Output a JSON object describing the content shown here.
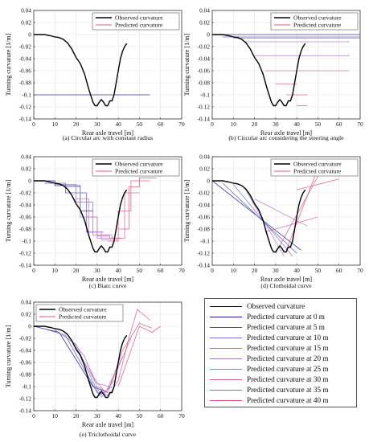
{
  "colors": {
    "observed": "#000000",
    "predicted": "#e05a78",
    "distance_ramp": [
      "#1a1a8c",
      "#4b4bc4",
      "#7a6fd0",
      "#9c7ad0",
      "#b376c4",
      "#c86aa6",
      "#d65e8c",
      "#e0567a",
      "#e84a6a"
    ]
  },
  "legend_box": {
    "entries": [
      {
        "label": "Observed curvature",
        "color": "#000000",
        "width": 1.6
      },
      {
        "label": "Predicted curvature at 0 m",
        "color": "#1a1a8c",
        "width": 1
      },
      {
        "label": "Predicted curvature at 5 m",
        "color": "#4b4bc4",
        "width": 1
      },
      {
        "label": "Predicted curvature at 10 m",
        "color": "#7a6fd0",
        "width": 1
      },
      {
        "label": "Predicted curvature at 15 m",
        "color": "#9c7ad0",
        "width": 1
      },
      {
        "label": "Predicted curvature at 20 m",
        "color": "#b376c4",
        "width": 1
      },
      {
        "label": "Predicted curvature at 25 m",
        "color": "#c86aa6",
        "width": 1
      },
      {
        "label": "Predicted curvature at 30 m",
        "color": "#d65e8c",
        "width": 1
      },
      {
        "label": "Predicted curvature at 35 m",
        "color": "#e0567a",
        "width": 1
      },
      {
        "label": "Predicted curvature at 40 m",
        "color": "#e84a6a",
        "width": 1
      }
    ]
  },
  "chart_data": [
    {
      "type": "line",
      "caption": "(a) Circular arc with constant radius",
      "xlabel": "Rear axle travel [m]",
      "ylabel": "Turning curvature [1/m]",
      "xlim": [
        0,
        70
      ],
      "ylim": [
        -0.14,
        0.04
      ],
      "xticks": [
        "0",
        "10",
        "20",
        "30",
        "40",
        "50",
        "60",
        "70"
      ],
      "yticks": [
        "0.04",
        "0.02",
        "0",
        "-0.02",
        "-0.04",
        "-0.06",
        "-0.08",
        "-0.1",
        "-0.12",
        "-0.14"
      ],
      "grid": true,
      "legend": {
        "position": "top-right",
        "entries": [
          "Observed curvature",
          "Predicted curvature"
        ]
      },
      "observed": {
        "x": [
          0,
          5,
          8,
          10,
          12,
          14,
          16,
          18,
          20,
          22,
          24,
          26,
          28,
          29,
          30,
          31,
          32,
          33,
          34,
          35,
          36,
          37,
          38,
          39,
          40,
          41,
          42,
          43,
          44
        ],
        "y": [
          0,
          0,
          -0.002,
          -0.004,
          -0.005,
          -0.008,
          -0.014,
          -0.024,
          -0.038,
          -0.048,
          -0.065,
          -0.09,
          -0.112,
          -0.118,
          -0.118,
          -0.112,
          -0.108,
          -0.112,
          -0.118,
          -0.118,
          -0.11,
          -0.11,
          -0.1,
          -0.08,
          -0.06,
          -0.04,
          -0.028,
          -0.02,
          -0.015
        ]
      },
      "predictions": [
        {
          "x": [
            0,
            55
          ],
          "y": [
            -0.1,
            -0.1
          ],
          "tone": 0
        }
      ]
    },
    {
      "type": "line",
      "caption": "(b) Circular arc considering the steering angle",
      "xlabel": "Rear axle travel [m]",
      "ylabel": "Turning curvature [1/m]",
      "xlim": [
        0,
        70
      ],
      "ylim": [
        -0.14,
        0.04
      ],
      "xticks": [
        "0",
        "10",
        "20",
        "30",
        "40",
        "50",
        "60",
        "70"
      ],
      "yticks": [
        "0.04",
        "0.02",
        "0",
        "-0.02",
        "-0.04",
        "-0.06",
        "-0.08",
        "-0.1",
        "-0.12",
        "-0.14"
      ],
      "grid": true,
      "legend": {
        "position": "top-right",
        "entries": [
          "Observed curvature",
          "Predicted curvature"
        ]
      },
      "observed": {
        "x": [
          0,
          5,
          8,
          10,
          12,
          14,
          16,
          18,
          20,
          22,
          24,
          26,
          28,
          29,
          30,
          31,
          32,
          33,
          34,
          35,
          36,
          37,
          38,
          39,
          40,
          41,
          42,
          43,
          44
        ],
        "y": [
          0,
          0,
          -0.002,
          -0.004,
          -0.005,
          -0.008,
          -0.014,
          -0.024,
          -0.038,
          -0.048,
          -0.065,
          -0.09,
          -0.112,
          -0.118,
          -0.118,
          -0.112,
          -0.108,
          -0.112,
          -0.118,
          -0.118,
          -0.11,
          -0.11,
          -0.1,
          -0.08,
          -0.06,
          -0.04,
          -0.028,
          -0.02,
          -0.015
        ]
      },
      "predictions": [
        {
          "x": [
            0,
            70
          ],
          "y": [
            0,
            0
          ],
          "tone": 0
        },
        {
          "x": [
            5,
            70
          ],
          "y": [
            -0.004,
            -0.004
          ],
          "tone": 1
        },
        {
          "x": [
            10,
            70
          ],
          "y": [
            -0.006,
            -0.006
          ],
          "tone": 2
        },
        {
          "x": [
            15,
            65
          ],
          "y": [
            -0.012,
            -0.012
          ],
          "tone": 3
        },
        {
          "x": [
            20,
            65
          ],
          "y": [
            -0.035,
            -0.035
          ],
          "tone": 4
        },
        {
          "x": [
            25,
            65
          ],
          "y": [
            -0.06,
            -0.06
          ],
          "tone": 5
        },
        {
          "x": [
            30,
            40
          ],
          "y": [
            -0.082,
            -0.082
          ],
          "tone": 6
        },
        {
          "x": [
            35,
            45
          ],
          "y": [
            -0.1,
            -0.1
          ],
          "tone": 7
        },
        {
          "x": [
            40,
            45
          ],
          "y": [
            -0.118,
            -0.118
          ],
          "tone": 8
        }
      ]
    },
    {
      "type": "line",
      "caption": "(c) Biarc curve",
      "xlabel": "Rear axle travel [m]",
      "ylabel": "Turning curvature [1/m]",
      "xlim": [
        0,
        70
      ],
      "ylim": [
        -0.14,
        0.04
      ],
      "xticks": [
        "0",
        "10",
        "20",
        "30",
        "40",
        "50",
        "60",
        "70"
      ],
      "yticks": [
        "0.04",
        "0.02",
        "0",
        "-0.02",
        "-0.04",
        "-0.06",
        "-0.08",
        "-0.1",
        "-0.12",
        "-0.14"
      ],
      "grid": true,
      "legend": {
        "position": "top-right",
        "entries": [
          "Observed curvature",
          "Predicted curvature"
        ]
      },
      "observed": {
        "x": [
          0,
          5,
          8,
          10,
          12,
          14,
          16,
          18,
          20,
          22,
          24,
          26,
          28,
          29,
          30,
          31,
          32,
          33,
          34,
          35,
          36,
          37,
          38,
          39,
          40,
          41,
          42,
          43,
          44
        ],
        "y": [
          0,
          0,
          -0.002,
          -0.004,
          -0.005,
          -0.008,
          -0.014,
          -0.024,
          -0.038,
          -0.048,
          -0.065,
          -0.09,
          -0.112,
          -0.118,
          -0.118,
          -0.112,
          -0.108,
          -0.112,
          -0.118,
          -0.118,
          -0.11,
          -0.11,
          -0.1,
          -0.08,
          -0.06,
          -0.04,
          -0.028,
          -0.02,
          -0.015
        ]
      },
      "predictions": [
        {
          "x": [
            0,
            10,
            10,
            22,
            22,
            28
          ],
          "y": [
            0,
            0,
            -0.008,
            -0.008,
            -0.05,
            -0.05
          ],
          "tone": 0
        },
        {
          "x": [
            5,
            15,
            15,
            25,
            25,
            33
          ],
          "y": [
            -0.004,
            -0.004,
            -0.02,
            -0.02,
            -0.085,
            -0.085
          ],
          "tone": 1
        },
        {
          "x": [
            10,
            20,
            20,
            28,
            28,
            36
          ],
          "y": [
            -0.006,
            -0.006,
            -0.035,
            -0.035,
            -0.09,
            -0.09
          ],
          "tone": 2
        },
        {
          "x": [
            15,
            22,
            22,
            30,
            30,
            38
          ],
          "y": [
            -0.01,
            -0.01,
            -0.06,
            -0.06,
            -0.095,
            -0.095
          ],
          "tone": 3
        },
        {
          "x": [
            20,
            26,
            26,
            32,
            32,
            40
          ],
          "y": [
            -0.03,
            -0.03,
            -0.085,
            -0.085,
            -0.098,
            -0.098
          ],
          "tone": 4
        },
        {
          "x": [
            25,
            30,
            30,
            36,
            36,
            42
          ],
          "y": [
            -0.06,
            -0.06,
            -0.092,
            -0.092,
            -0.095,
            -0.095
          ],
          "tone": 5
        },
        {
          "x": [
            30,
            37,
            37,
            43,
            43,
            50
          ],
          "y": [
            -0.09,
            -0.09,
            -0.095,
            -0.095,
            -0.02,
            -0.02
          ],
          "tone": 6
        },
        {
          "x": [
            35,
            40,
            40,
            46,
            46,
            55
          ],
          "y": [
            -0.1,
            -0.1,
            -0.05,
            -0.05,
            0,
            0
          ],
          "tone": 7
        },
        {
          "x": [
            40,
            45,
            45,
            50,
            50,
            58
          ],
          "y": [
            -0.08,
            -0.08,
            -0.01,
            -0.01,
            0.005,
            0.005
          ],
          "tone": 8
        }
      ]
    },
    {
      "type": "line",
      "caption": "(d) Clothoidal curve",
      "xlabel": "Rear axle travel [m]",
      "ylabel": "Turning curvature [1/m]",
      "xlim": [
        0,
        70
      ],
      "ylim": [
        -0.14,
        0.04
      ],
      "xticks": [
        "0",
        "10",
        "20",
        "30",
        "40",
        "50",
        "60",
        "70"
      ],
      "yticks": [
        "0.04",
        "0.02",
        "0",
        "-0.02",
        "-0.04",
        "-0.06",
        "-0.08",
        "-0.1",
        "-0.12",
        "-0.14"
      ],
      "grid": true,
      "legend": {
        "position": "top-right",
        "entries": [
          "Observed curvature",
          "Predicted curvature"
        ]
      },
      "observed": {
        "x": [
          0,
          5,
          8,
          10,
          12,
          14,
          16,
          18,
          20,
          22,
          24,
          26,
          28,
          29,
          30,
          31,
          32,
          33,
          34,
          35,
          36,
          37,
          38,
          39,
          40,
          41,
          42,
          43,
          44
        ],
        "y": [
          0,
          0,
          -0.002,
          -0.004,
          -0.005,
          -0.008,
          -0.014,
          -0.024,
          -0.038,
          -0.048,
          -0.065,
          -0.09,
          -0.112,
          -0.118,
          -0.118,
          -0.112,
          -0.108,
          -0.112,
          -0.118,
          -0.118,
          -0.11,
          -0.11,
          -0.1,
          -0.08,
          -0.06,
          -0.04,
          -0.028,
          -0.02,
          -0.015
        ]
      },
      "predictions": [
        {
          "x": [
            0,
            42
          ],
          "y": [
            0,
            -0.115
          ],
          "tone": 0
        },
        {
          "x": [
            5,
            40
          ],
          "y": [
            -0.004,
            -0.12
          ],
          "tone": 1
        },
        {
          "x": [
            10,
            38
          ],
          "y": [
            -0.006,
            -0.125
          ],
          "tone": 2
        },
        {
          "x": [
            15,
            34
          ],
          "y": [
            -0.01,
            -0.125
          ],
          "tone": 3
        },
        {
          "x": [
            20,
            45
          ],
          "y": [
            -0.03,
            -0.075
          ],
          "tone": 4
        },
        {
          "x": [
            25,
            50
          ],
          "y": [
            -0.085,
            -0.06
          ],
          "tone": 5
        },
        {
          "x": [
            30,
            52
          ],
          "y": [
            -0.12,
            0.02
          ],
          "tone": 6
        },
        {
          "x": [
            35,
            50
          ],
          "y": [
            -0.115,
            0.02
          ],
          "tone": 7
        },
        {
          "x": [
            40,
            60
          ],
          "y": [
            -0.015,
            0.003
          ],
          "tone": 8
        }
      ]
    },
    {
      "type": "line",
      "caption": "(e) Triclothoidal curve",
      "xlabel": "Rear axle travel [m]",
      "ylabel": "Turning curvature [1/m]",
      "xlim": [
        0,
        70
      ],
      "ylim": [
        -0.14,
        0.04
      ],
      "xticks": [
        "0",
        "10",
        "20",
        "30",
        "40",
        "50",
        "60",
        "70"
      ],
      "yticks": [
        "0.04",
        "0.02",
        "0",
        "-0.02",
        "-0.04",
        "-0.06",
        "-0.08",
        "-0.1",
        "-0.12",
        "-0.14"
      ],
      "grid": true,
      "legend": {
        "position": "top-left",
        "entries": [
          "Observed curvature",
          "Predicted curvature"
        ]
      },
      "observed": {
        "x": [
          0,
          5,
          8,
          10,
          12,
          14,
          16,
          18,
          20,
          22,
          24,
          26,
          28,
          29,
          30,
          31,
          32,
          33,
          34,
          35,
          36,
          37,
          38,
          39,
          40,
          41,
          42,
          43,
          44
        ],
        "y": [
          0,
          0,
          -0.002,
          -0.004,
          -0.005,
          -0.008,
          -0.014,
          -0.024,
          -0.038,
          -0.048,
          -0.065,
          -0.09,
          -0.112,
          -0.118,
          -0.118,
          -0.112,
          -0.108,
          -0.112,
          -0.118,
          -0.118,
          -0.11,
          -0.11,
          -0.1,
          -0.08,
          -0.06,
          -0.04,
          -0.028,
          -0.02,
          -0.015
        ]
      },
      "predictions": [
        {
          "x": [
            0,
            12,
            28,
            35
          ],
          "y": [
            0,
            -0.01,
            -0.1,
            -0.11
          ],
          "tone": 0
        },
        {
          "x": [
            5,
            15,
            30,
            36
          ],
          "y": [
            -0.004,
            -0.015,
            -0.11,
            -0.115
          ],
          "tone": 1
        },
        {
          "x": [
            10,
            20,
            31,
            37
          ],
          "y": [
            -0.006,
            -0.03,
            -0.115,
            -0.1
          ],
          "tone": 2
        },
        {
          "x": [
            15,
            24,
            32,
            38
          ],
          "y": [
            -0.01,
            -0.05,
            -0.118,
            -0.09
          ],
          "tone": 3
        },
        {
          "x": [
            20,
            28,
            34,
            42
          ],
          "y": [
            -0.035,
            -0.085,
            -0.11,
            -0.05
          ],
          "tone": 4
        },
        {
          "x": [
            25,
            30,
            36,
            46
          ],
          "y": [
            -0.06,
            -0.095,
            -0.1,
            -0.02
          ],
          "tone": 5
        },
        {
          "x": [
            30,
            35,
            42,
            50,
            56
          ],
          "y": [
            -0.1,
            -0.11,
            -0.04,
            0.005,
            -0.003
          ],
          "tone": 6
        },
        {
          "x": [
            35,
            40,
            45,
            49,
            55
          ],
          "y": [
            -0.118,
            -0.09,
            -0.02,
            0.028,
            0.01
          ],
          "tone": 7
        },
        {
          "x": [
            40,
            45,
            50,
            56,
            60
          ],
          "y": [
            -0.1,
            -0.05,
            0.0,
            -0.01,
            0.0
          ],
          "tone": 8
        }
      ]
    }
  ]
}
